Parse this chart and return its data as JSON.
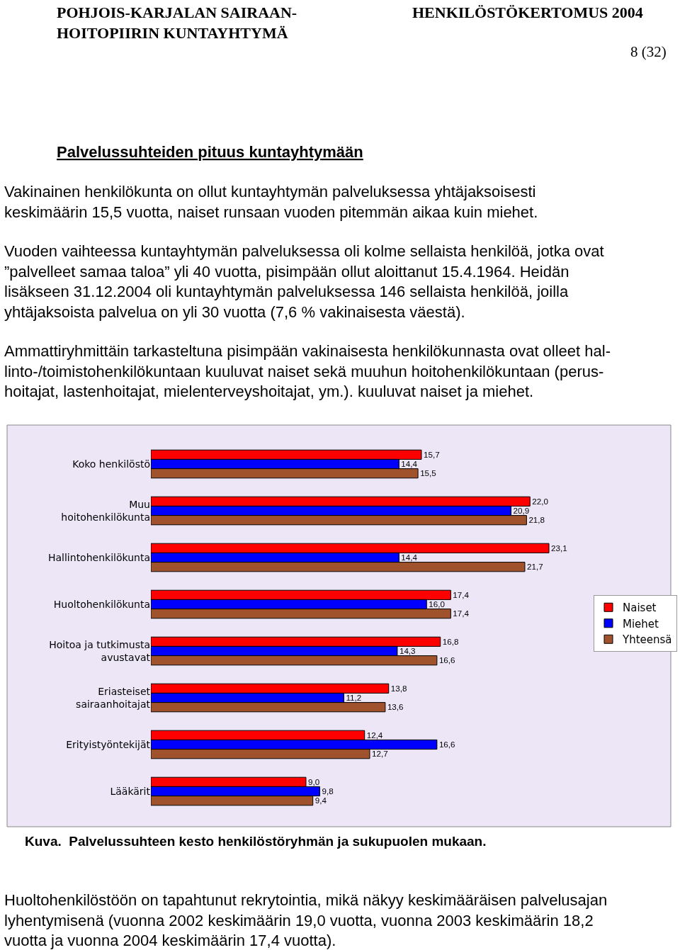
{
  "chart_data": {
    "type": "bar",
    "orientation": "horizontal",
    "title": "Palvelussuhteiden pituus kuntayhtymään",
    "categories": [
      "Koko henkilöstö",
      "Muu\nhoitohenkilökunta",
      "Hallintohenkilökunta",
      "Huoltohenkilökunta",
      "Hoitoa ja tutkimusta\navustavat",
      "Eriasteiset\nsairaanhoitajat",
      "Erityistyöntekijät",
      "Lääkärit"
    ],
    "series": [
      {
        "name": "Naiset",
        "color": "#ff0000",
        "values": [
          15.7,
          22.0,
          23.1,
          17.4,
          16.8,
          13.8,
          12.4,
          9.0
        ],
        "value_labels": [
          "15,7",
          "22,0",
          "23,1",
          "17,4",
          "16,8",
          "13,8",
          "12,4",
          "9,0"
        ]
      },
      {
        "name": "Miehet",
        "color": "#0000ff",
        "values": [
          14.4,
          20.9,
          14.4,
          16.0,
          14.3,
          11.2,
          16.6,
          9.8
        ],
        "value_labels": [
          "14,4",
          "20,9",
          "14,4",
          "16,0",
          "14,3",
          "11,2",
          "16,6",
          "9,8"
        ]
      },
      {
        "name": "Yhteensä",
        "color": "#a0522d",
        "values": [
          15.5,
          21.8,
          21.7,
          17.4,
          16.6,
          13.6,
          12.7,
          9.4
        ],
        "value_labels": [
          "15,5",
          "21,8",
          "21,7",
          "17,4",
          "16,6",
          "13,6",
          "12,7",
          "9,4"
        ]
      }
    ],
    "legend": "right",
    "grid": false,
    "annotations": [
      "POHJOIS-KARJALAN SAIRAAN-\nHOITOPIIRIN KUNTAYHTYMÄ",
      "HENKILÖSTÖKERTOMUS 2004",
      "8 (32)",
      "Vakinainen henkilökunta on ollut kuntayhtymän palveluksessa yhtäjaksoisesti\nkeskimäärin 15,5 vuotta, naiset runsaan vuoden pitemmän aikaa kuin miehet.",
      "Vuoden vaihteessa kuntayhtymän palveluksessa oli kolme sellaista henkilöä, jotka ovat\n”palvelleet samaa taloa” yli 40 vuotta, pisimpään ollut aloittanut 15.4.1964. Heidän\nlisäkseen 31.12.2004 oli kuntayhtymän palveluksessa 146 sellaista henkilöä, joilla\nyhtäjaksoista palvelua on yli 30 vuotta (7,6 % vakinaisesta väestä).",
      "Ammattiryhmittäin tarkasteltuna pisimpään vakinaisesta henkilökunnasta ovat olleet hal-\nlinto-/toimistohenkilökuntaan kuuluvat naiset sekä muuhun hoitohenkilökuntaan (perus-\nhoitajat, lastenhoitajat, mielenterveyshoitajat, ym.). kuuluvat naiset ja miehet.",
      "Kuva.  Palvelussuhteen kesto henkilöstöryhmän ja sukupuolen mukaan.",
      "Huoltohenkilöstöön on tapahtunut rekrytointia, mikä näkyy keskimääräisen palvelusajan\nlyhentymisenä (vuonna 2002 keskimäärin 19,0 vuotta, vuonna 2003 keskimäärin 18,2\nvuotta ja vuonna 2004 keskimäärin 17,4 vuotta)."
    ]
  }
}
